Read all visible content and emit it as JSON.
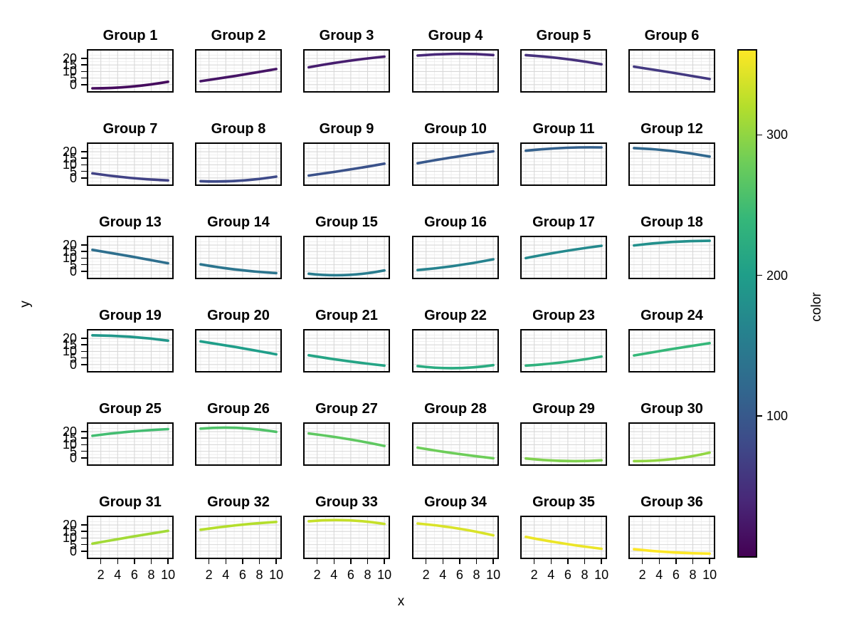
{
  "figure": {
    "background": "#ffffff",
    "x_axis": {
      "label": "x",
      "ticks": [
        2,
        4,
        6,
        8,
        10
      ],
      "minor_ticks": [
        1,
        3,
        5,
        7,
        9
      ],
      "lim": [
        0.5,
        10.5
      ]
    },
    "y_axis": {
      "label": "y",
      "ticks": [
        20,
        15,
        10,
        5,
        0
      ],
      "minor_ticks": [
        -2.5,
        2.5,
        7.5,
        12.5,
        17.5,
        22.5
      ],
      "lim": [
        -5,
        26
      ]
    },
    "grid": {
      "major_color": "#d8d8d8",
      "minor_color": "#ececec"
    },
    "panel_border_color": "#000000",
    "colorbar": {
      "label": "color",
      "ticks": [
        300,
        200,
        100
      ],
      "lim": [
        0,
        360
      ],
      "viridis_stops": [
        "#440154",
        "#482878",
        "#3e4a89",
        "#31688e",
        "#26828e",
        "#1f9e89",
        "#35b779",
        "#6dcd59",
        "#b4de2c",
        "#fde725"
      ]
    }
  },
  "chart_data": {
    "type": "line",
    "layout": "6x6 facet grid, shared axes",
    "xlabel": "x",
    "ylabel": "y",
    "xlim": [
      0.5,
      10.5
    ],
    "ylim": [
      -5,
      26
    ],
    "x_ticks": [
      2,
      4,
      6,
      8,
      10
    ],
    "y_ticks": [
      0,
      5,
      10,
      15,
      20
    ],
    "color_scale": {
      "name": "viridis",
      "label": "color",
      "lim": [
        0,
        360
      ],
      "ticks": [
        100,
        200,
        300
      ]
    },
    "x": [
      1,
      5.5,
      10
    ],
    "facets": [
      {
        "label": "Group 1",
        "color_value": 10,
        "y": [
          -2.8,
          -1.6,
          2.2
        ]
      },
      {
        "label": "Group 2",
        "color_value": 20,
        "y": [
          2.6,
          7.0,
          11.9
        ]
      },
      {
        "label": "Group 3",
        "color_value": 30,
        "y": [
          13.2,
          17.9,
          21.4
        ]
      },
      {
        "label": "Group 4",
        "color_value": 40,
        "y": [
          22.2,
          23.5,
          22.6
        ]
      },
      {
        "label": "Group 5",
        "color_value": 50,
        "y": [
          22.5,
          19.8,
          15.5
        ]
      },
      {
        "label": "Group 6",
        "color_value": 60,
        "y": [
          13.7,
          9.2,
          4.3
        ]
      },
      {
        "label": "Group 7",
        "color_value": 70,
        "y": [
          3.5,
          0.0,
          -1.9
        ]
      },
      {
        "label": "Group 8",
        "color_value": 80,
        "y": [
          -2.5,
          -2.2,
          1.0
        ]
      },
      {
        "label": "Group 9",
        "color_value": 90,
        "y": [
          1.8,
          6.0,
          10.9
        ]
      },
      {
        "label": "Group 10",
        "color_value": 100,
        "y": [
          11.2,
          16.1,
          20.3
        ]
      },
      {
        "label": "Group 11",
        "color_value": 110,
        "y": [
          20.8,
          22.9,
          23.3
        ]
      },
      {
        "label": "Group 12",
        "color_value": 120,
        "y": [
          22.8,
          20.6,
          16.3
        ]
      },
      {
        "label": "Group 13",
        "color_value": 130,
        "y": [
          16.3,
          11.4,
          6.1
        ]
      },
      {
        "label": "Group 14",
        "color_value": 140,
        "y": [
          5.2,
          1.0,
          -1.4
        ]
      },
      {
        "label": "Group 15",
        "color_value": 150,
        "y": [
          -1.9,
          -2.9,
          0.6
        ]
      },
      {
        "label": "Group 16",
        "color_value": 160,
        "y": [
          0.9,
          4.2,
          9.1
        ]
      },
      {
        "label": "Group 17",
        "color_value": 170,
        "y": [
          10.0,
          15.2,
          19.4
        ]
      },
      {
        "label": "Group 18",
        "color_value": 180,
        "y": [
          19.7,
          22.3,
          23.2
        ]
      },
      {
        "label": "Group 19",
        "color_value": 190,
        "y": [
          22.3,
          21.2,
          18.2
        ]
      },
      {
        "label": "Group 20",
        "color_value": 200,
        "y": [
          17.7,
          13.0,
          7.8
        ]
      },
      {
        "label": "Group 21",
        "color_value": 210,
        "y": [
          7.1,
          2.7,
          -0.8
        ]
      },
      {
        "label": "Group 22",
        "color_value": 220,
        "y": [
          -1.2,
          -2.8,
          -0.5
        ]
      },
      {
        "label": "Group 23",
        "color_value": 230,
        "y": [
          -0.8,
          1.8,
          6.1
        ]
      },
      {
        "label": "Group 24",
        "color_value": 240,
        "y": [
          6.9,
          11.8,
          16.3
        ]
      },
      {
        "label": "Group 25",
        "color_value": 250,
        "y": [
          16.8,
          20.0,
          21.9
        ]
      },
      {
        "label": "Group 26",
        "color_value": 260,
        "y": [
          22.3,
          22.8,
          19.8
        ]
      },
      {
        "label": "Group 27",
        "color_value": 270,
        "y": [
          18.6,
          14.5,
          9.1
        ]
      },
      {
        "label": "Group 28",
        "color_value": 280,
        "y": [
          7.8,
          3.3,
          -0.3
        ]
      },
      {
        "label": "Group 29",
        "color_value": 290,
        "y": [
          -0.5,
          -2.4,
          -1.9
        ]
      },
      {
        "label": "Group 30",
        "color_value": 300,
        "y": [
          -2.5,
          -1.0,
          4.0
        ]
      },
      {
        "label": "Group 31",
        "color_value": 310,
        "y": [
          5.7,
          10.8,
          15.5
        ]
      },
      {
        "label": "Group 32",
        "color_value": 320,
        "y": [
          16.3,
          19.9,
          22.3
        ]
      },
      {
        "label": "Group 33",
        "color_value": 330,
        "y": [
          22.8,
          23.6,
          20.8
        ]
      },
      {
        "label": "Group 34",
        "color_value": 340,
        "y": [
          21.1,
          17.6,
          12.1
        ]
      },
      {
        "label": "Group 35",
        "color_value": 350,
        "y": [
          10.9,
          5.8,
          1.8
        ]
      },
      {
        "label": "Group 36",
        "color_value": 360,
        "y": [
          1.4,
          -0.9,
          -1.9
        ]
      }
    ]
  }
}
